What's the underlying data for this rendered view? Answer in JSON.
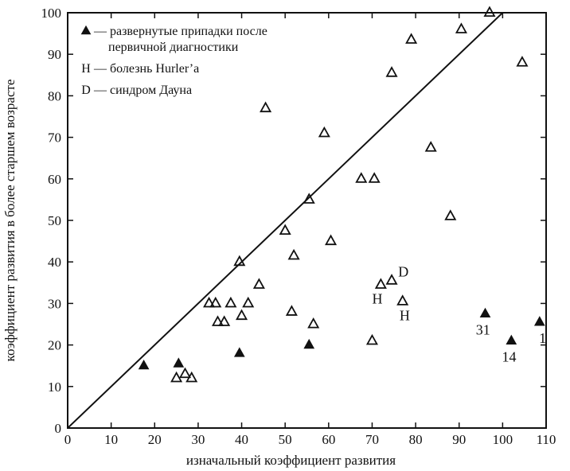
{
  "chart_data": {
    "type": "scatter",
    "xlabel": "изначальный коэффициент развития",
    "ylabel": "коэффициент развития в более старшем возрасте",
    "xlim": [
      0,
      110
    ],
    "ylim": [
      0,
      100
    ],
    "xticks": [
      0,
      10,
      20,
      30,
      40,
      50,
      60,
      70,
      80,
      90,
      100,
      110
    ],
    "yticks": [
      0,
      10,
      20,
      30,
      40,
      50,
      60,
      70,
      80,
      90,
      100
    ],
    "grid": false,
    "legend_position": "top-left",
    "legend": [
      {
        "marker": "filled-triangle",
        "text_lines": [
          "— развернутые припадки после",
          "первичной диагностики"
        ]
      },
      {
        "marker": "H",
        "text_lines": [
          "— болезнь Hurler’a"
        ]
      },
      {
        "marker": "D",
        "text_lines": [
          "— синдром Дауна"
        ]
      }
    ],
    "reference_line": {
      "x": [
        0,
        100
      ],
      "y": [
        0,
        100
      ]
    },
    "series": [
      {
        "marker": "open-triangle",
        "points": [
          {
            "x": 25,
            "y": 12
          },
          {
            "x": 27,
            "y": 13
          },
          {
            "x": 28.5,
            "y": 12
          },
          {
            "x": 32.5,
            "y": 30
          },
          {
            "x": 34,
            "y": 30
          },
          {
            "x": 34.5,
            "y": 25.5
          },
          {
            "x": 36,
            "y": 25.5
          },
          {
            "x": 37.5,
            "y": 30
          },
          {
            "x": 40,
            "y": 27
          },
          {
            "x": 41.5,
            "y": 30
          },
          {
            "x": 39.5,
            "y": 40
          },
          {
            "x": 44,
            "y": 34.5
          },
          {
            "x": 45.5,
            "y": 77
          },
          {
            "x": 50,
            "y": 47.5
          },
          {
            "x": 51.5,
            "y": 28
          },
          {
            "x": 52,
            "y": 41.5
          },
          {
            "x": 55.5,
            "y": 55
          },
          {
            "x": 56.5,
            "y": 25
          },
          {
            "x": 59,
            "y": 71
          },
          {
            "x": 60.5,
            "y": 45
          },
          {
            "x": 67.5,
            "y": 60
          },
          {
            "x": 70.5,
            "y": 60
          },
          {
            "x": 70,
            "y": 21
          },
          {
            "x": 72,
            "y": 34.5
          },
          {
            "x": 74.5,
            "y": 35.5
          },
          {
            "x": 77,
            "y": 30.5
          },
          {
            "x": 74.5,
            "y": 85.5
          },
          {
            "x": 79,
            "y": 93.5
          },
          {
            "x": 83.5,
            "y": 67.5
          },
          {
            "x": 88,
            "y": 51
          },
          {
            "x": 90.5,
            "y": 96
          },
          {
            "x": 97,
            "y": 100
          },
          {
            "x": 104.5,
            "y": 88
          }
        ]
      },
      {
        "marker": "filled-triangle",
        "points": [
          {
            "x": 17.5,
            "y": 15
          },
          {
            "x": 25.5,
            "y": 15.5
          },
          {
            "x": 39.5,
            "y": 18
          },
          {
            "x": 55.5,
            "y": 20
          },
          {
            "x": 96,
            "y": 27.5
          },
          {
            "x": 102,
            "y": 21
          },
          {
            "x": 108.5,
            "y": 25.5
          }
        ]
      }
    ],
    "annotations": [
      {
        "text": "D",
        "x": 77.2,
        "y": 36.5
      },
      {
        "text": "H",
        "x": 71.2,
        "y": 30
      },
      {
        "text": "H",
        "x": 77.5,
        "y": 26
      },
      {
        "text": "31",
        "x": 95.5,
        "y": 22.5
      },
      {
        "text": "14",
        "x": 101.5,
        "y": 16
      },
      {
        "text": "1",
        "x": 109.2,
        "y": 20.5
      }
    ]
  }
}
